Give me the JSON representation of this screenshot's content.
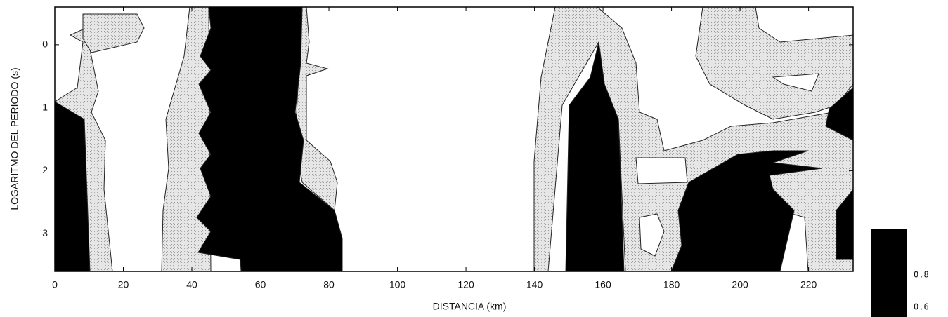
{
  "chart_data": {
    "type": "contour",
    "xlabel": "DISTANCIA (km)",
    "ylabel": "LOGARITMO DEL PERIODO (s)",
    "xlim": [
      0,
      233
    ],
    "xticks": [
      0,
      20,
      40,
      60,
      80,
      100,
      120,
      140,
      160,
      180,
      200,
      220
    ],
    "ylim": [
      -0.6,
      3.6
    ],
    "yticks": [
      0,
      1,
      2,
      3
    ],
    "y_inverted": true,
    "colorbar": {
      "ticks": [
        0.8,
        0.6
      ]
    }
  }
}
